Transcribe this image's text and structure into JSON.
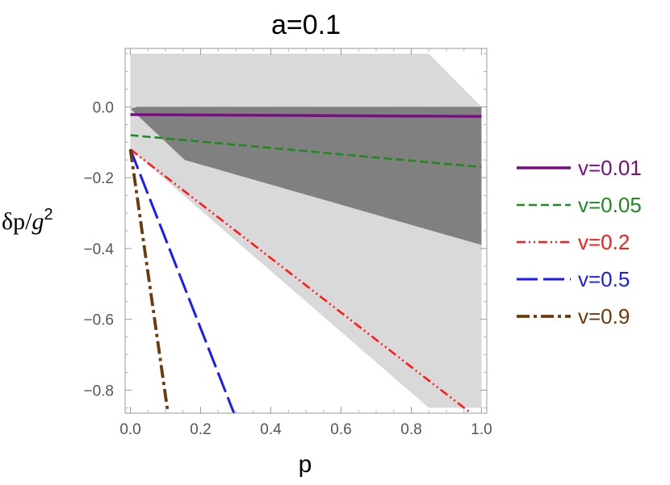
{
  "chart_data": {
    "type": "line",
    "title": "a=0.1",
    "xlabel": "p",
    "ylabel": {
      "base": "δp/",
      "g": "g",
      "exp": "2"
    },
    "xlim": [
      -0.015,
      1.015
    ],
    "ylim": [
      -0.865,
      0.165
    ],
    "xticks": [
      0.0,
      0.2,
      0.4,
      0.6,
      0.8,
      1.0
    ],
    "xtick_labels": [
      "0.0",
      "0.2",
      "0.4",
      "0.6",
      "0.8",
      "1.0"
    ],
    "yticks": [
      0.0,
      -0.2,
      -0.4,
      -0.6,
      -0.8
    ],
    "ytick_labels": [
      "0.0",
      "−0.2",
      "−0.4",
      "−0.6",
      "−0.8"
    ],
    "grid": false,
    "legend_position": "right",
    "shaded_regions": [
      {
        "color": "#d9d9d9",
        "points": [
          [
            0.0,
            0.15
          ],
          [
            0.85,
            0.15
          ],
          [
            1.0,
            0.0
          ],
          [
            1.0,
            -0.85
          ],
          [
            0.85,
            -0.85
          ],
          [
            0.0,
            -0.12
          ]
        ]
      },
      {
        "color": "#808080",
        "points": [
          [
            0.02,
            0.0
          ],
          [
            1.0,
            0.0
          ],
          [
            1.0,
            -0.39
          ],
          [
            0.155,
            -0.15
          ],
          [
            0.0,
            -0.005
          ]
        ]
      }
    ],
    "series": [
      {
        "name": "v=0.01",
        "color": "#7b0d82",
        "dash": "solid",
        "x": [
          0.0,
          1.0
        ],
        "y": [
          -0.022,
          -0.027
        ]
      },
      {
        "name": "v=0.05",
        "color": "#1f8a1f",
        "dash": "dashed",
        "x": [
          0.0,
          1.0
        ],
        "y": [
          -0.08,
          -0.17
        ]
      },
      {
        "name": "v=0.2",
        "color": "#ff1a1a",
        "dash": "dashdotdot",
        "x": [
          0.0,
          0.97
        ],
        "y": [
          -0.12,
          -0.865
        ]
      },
      {
        "name": "v=0.5",
        "color": "#1a1aff",
        "dash": "longdash",
        "x": [
          0.0,
          0.295
        ],
        "y": [
          -0.12,
          -0.865
        ]
      },
      {
        "name": "v=0.9",
        "color": "#6b3a0a",
        "dash": "dashdot",
        "x": [
          0.0,
          0.107
        ],
        "y": [
          -0.12,
          -0.865
        ]
      }
    ]
  }
}
